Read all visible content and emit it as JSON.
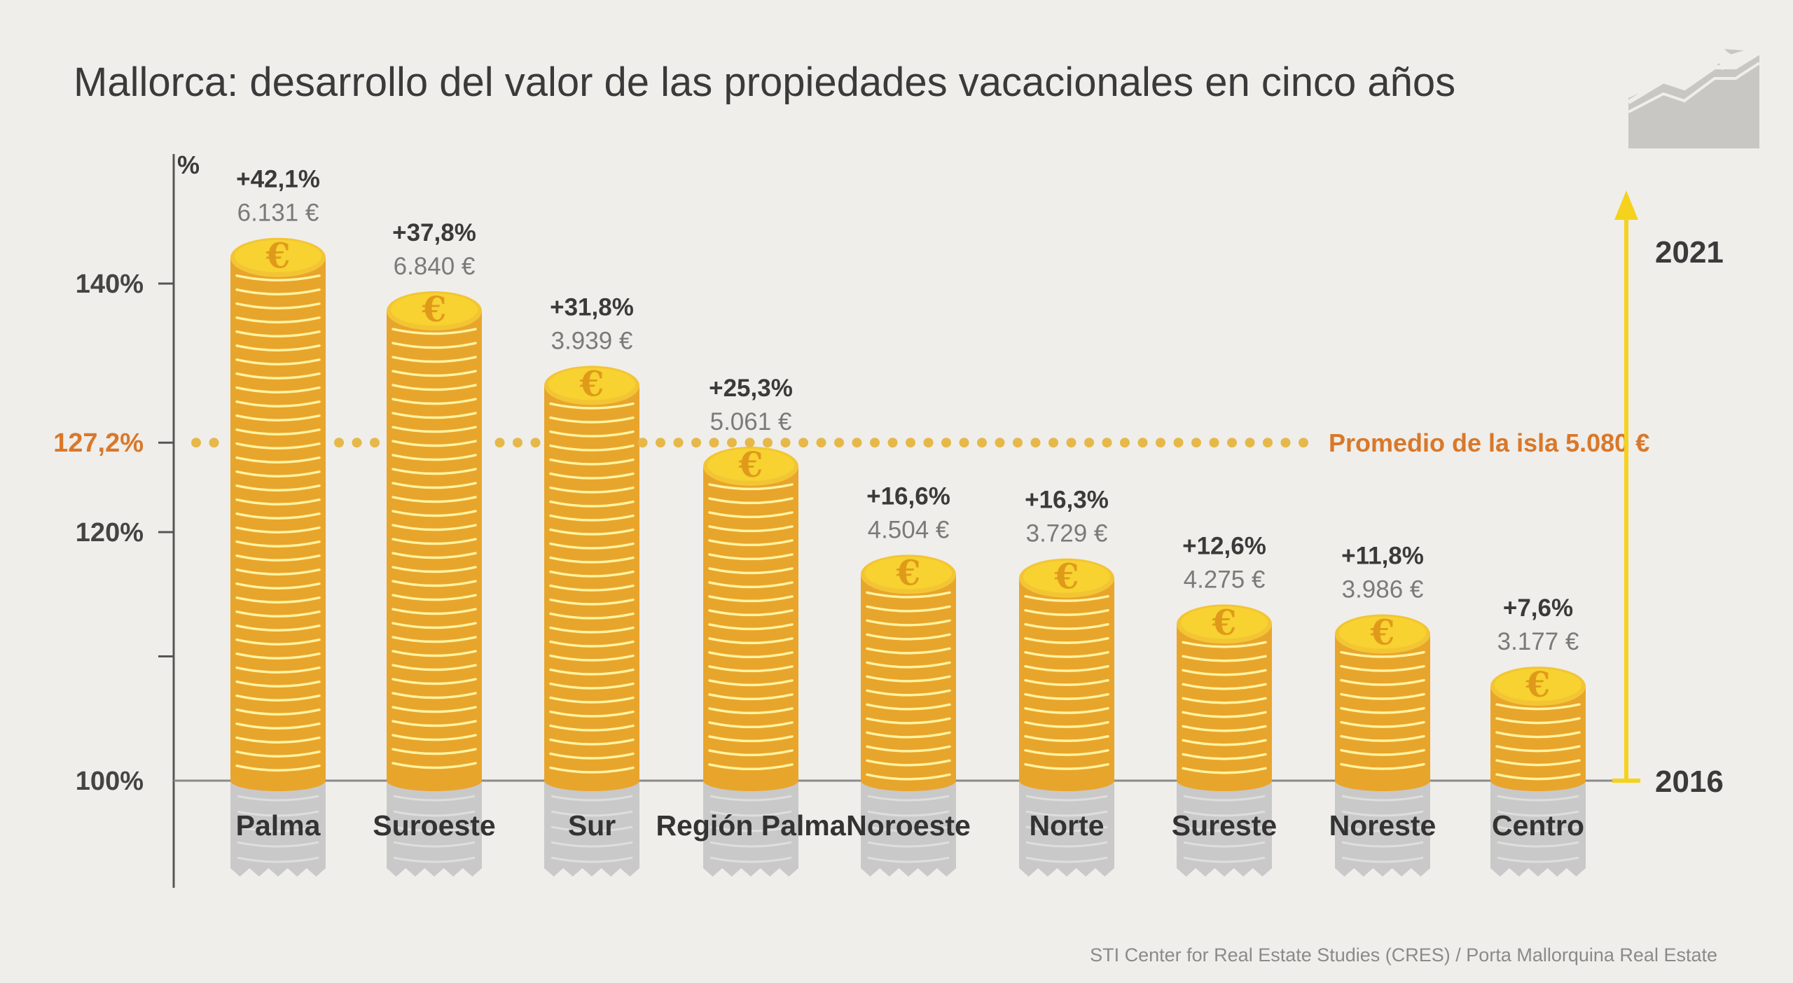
{
  "title": "Mallorca: desarrollo del valor de las propiedades vacacionales en cinco años",
  "source": "STI Center for Real Estate Studies (CRES) / Porta Mallorquina Real Estate",
  "colors": {
    "background": "#efeeea",
    "coin_face": "#f7d231",
    "coin_side": "#e8a52c",
    "coin_stripe": "#fff3a0",
    "average": "#d9782a",
    "arrow": "#f5d21d",
    "base_coin": "#c9c9c9"
  },
  "chart_data": {
    "type": "bar",
    "title": "Mallorca: desarrollo del valor de las propiedades vacacionales en cinco años",
    "ylabel": "%",
    "xlabel": "",
    "ylim": [
      100,
      140
    ],
    "yticks": [
      "140%",
      "120%",
      "100%"
    ],
    "average": {
      "value": 127.2,
      "tick_label": "127,2%",
      "label": "Promedio de la isla 5.080 €"
    },
    "time_axis": {
      "start": "2016",
      "end": "2021"
    },
    "categories": [
      "Palma",
      "Suroeste",
      "Sur",
      "Región Palma",
      "Noroeste",
      "Norte",
      "Sureste",
      "Noreste",
      "Centro"
    ],
    "values": [
      142.1,
      137.8,
      131.8,
      125.3,
      116.6,
      116.3,
      112.6,
      111.8,
      107.6
    ],
    "change_labels": [
      "+42,1%",
      "+37,8%",
      "+31,8%",
      "+25,3%",
      "+16,6%",
      "+16,3%",
      "+12,6%",
      "+11,8%",
      "+7,6%"
    ],
    "price_labels": [
      "6.131 €",
      "6.840 €",
      "3.939 €",
      "5.061 €",
      "4.504 €",
      "3.729 €",
      "4.275 €",
      "3.986 €",
      "3.177 €"
    ],
    "grid": false,
    "legend": "none"
  }
}
